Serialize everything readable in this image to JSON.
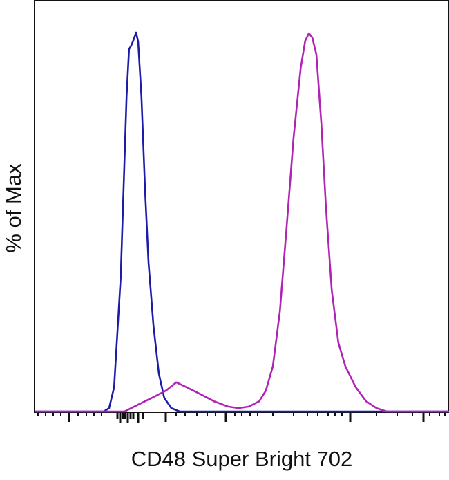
{
  "chart_data": {
    "type": "line",
    "title": "",
    "xlabel": "CD48 Super Bright 702",
    "ylabel": "% of Max",
    "x_scale": "biexponential (unlabeled ticks)",
    "xlim": [
      0,
      1000
    ],
    "ylim": [
      0,
      100
    ],
    "grid": false,
    "legend": "none",
    "series": [
      {
        "color": "#1c1ca8",
        "x": [
          0,
          167,
          180,
          192,
          208,
          222,
          228,
          233,
          238,
          245,
          250,
          258,
          267,
          275,
          287,
          300,
          313,
          330,
          350,
          1000
        ],
        "y": [
          0,
          0,
          0.9,
          6.4,
          35.6,
          83,
          95.6,
          96.5,
          97.8,
          100,
          97.6,
          83,
          57.7,
          39.4,
          22.6,
          10,
          3.6,
          0.9,
          0,
          0
        ]
      },
      {
        "color": "#b023b4",
        "x": [
          0,
          217,
          250,
          283,
          317,
          342,
          367,
          400,
          433,
          467,
          492,
          517,
          542,
          558,
          575,
          592,
          608,
          625,
          642,
          653,
          662,
          670,
          680,
          692,
          703,
          717,
          733,
          750,
          775,
          800,
          825,
          850,
          1000
        ],
        "y": [
          0,
          0,
          1.8,
          3.6,
          5.5,
          7.7,
          6.4,
          4.6,
          2.7,
          1.3,
          0.9,
          1.3,
          2.7,
          5.5,
          11.9,
          26.5,
          48.4,
          72.3,
          90.5,
          97.8,
          99.8,
          98.7,
          94.2,
          75.9,
          54,
          32.1,
          18.2,
          11.9,
          6.4,
          2.7,
          0.9,
          0,
          0
        ]
      }
    ]
  }
}
